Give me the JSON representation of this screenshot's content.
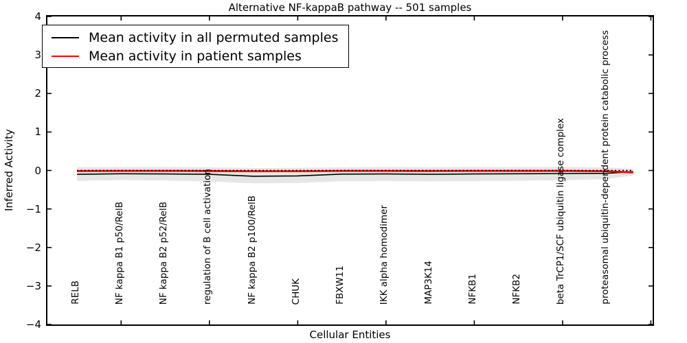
{
  "title": "Alternative NF-kappaB pathway -- 501 samples",
  "axes": {
    "xlabel": "Cellular Entities",
    "ylabel": "Inferred Activity",
    "xlim": [
      -0.67,
      13.04
    ],
    "ylim": [
      -4,
      4
    ],
    "ytick_labels": [
      "4",
      "3",
      "2",
      "1",
      "0",
      "−1",
      "−2",
      "−3",
      "−4"
    ],
    "ytick_values": [
      4,
      3,
      2,
      1,
      0,
      -1,
      -2,
      -3,
      -4
    ],
    "xtick_values": [
      1,
      3,
      5,
      7,
      9,
      11,
      13
    ],
    "grid": false
  },
  "legend": {
    "position": "upper left",
    "entries": [
      {
        "label": "Mean activity in all permuted samples",
        "color": "#000000"
      },
      {
        "label": "Mean activity in patient samples",
        "color": "#ff0000"
      }
    ]
  },
  "chart_data": {
    "type": "line",
    "title": "Alternative NF-kappaB pathway -- 501 samples",
    "xlabel": "Cellular Entities",
    "ylabel": "Inferred Activity",
    "xlim": [
      -0.67,
      13.04
    ],
    "ylim": [
      -4,
      4
    ],
    "legend_position": "upper left",
    "grid": false,
    "categories": [
      "RELB",
      "NF kappa B1 p50/RelB",
      "NF kappa B2 p52/RelB",
      "regulation of B cell activation",
      "NF kappa B2 p100/RelB",
      "CHUK",
      "FBXW11",
      "IKK alpha homodimer",
      "MAP3K14",
      "NFKB1",
      "NFKB2",
      "beta TrCP1/SCF ubiquitin ligase complex",
      "proteasomal ubiquitin-dependent protein catabolic process"
    ],
    "category_x": [
      0,
      1,
      2,
      3,
      4,
      5,
      6,
      7,
      8,
      9,
      10,
      11,
      12
    ],
    "x": [
      0,
      1,
      2,
      3,
      4,
      5,
      6,
      7,
      8,
      9,
      10,
      11,
      12,
      12.6
    ],
    "series": [
      {
        "name": "Mean activity in all permuted samples",
        "color": "#000000",
        "style": "solid",
        "values": [
          -0.1,
          -0.085,
          -0.09,
          -0.1,
          -0.15,
          -0.14,
          -0.095,
          -0.09,
          -0.1,
          -0.09,
          -0.085,
          -0.08,
          -0.075,
          -0.03
        ]
      },
      {
        "name": "Mean activity in patient samples",
        "color": "#ff0000",
        "style": "solid",
        "values": [
          -0.015,
          -0.01,
          -0.01,
          -0.015,
          -0.02,
          -0.02,
          -0.01,
          -0.01,
          -0.015,
          -0.01,
          -0.01,
          -0.01,
          -0.02,
          -0.05
        ]
      },
      {
        "name": "zero reference line",
        "color": "#000000",
        "style": "dotted",
        "values": [
          0,
          0,
          0,
          0,
          0,
          0,
          0,
          0,
          0,
          0,
          0,
          0,
          0,
          0
        ]
      }
    ],
    "band": {
      "name": "permuted samples spread",
      "color": "#e6e6e6",
      "upper": [
        0.085,
        0.09,
        0.09,
        0.08,
        0.065,
        0.07,
        0.08,
        0.09,
        0.085,
        0.09,
        0.09,
        0.09,
        0.075,
        0.045
      ],
      "lower": [
        -0.27,
        -0.25,
        -0.26,
        -0.285,
        -0.335,
        -0.325,
        -0.28,
        -0.27,
        -0.285,
        -0.275,
        -0.265,
        -0.255,
        -0.225,
        -0.13
      ]
    }
  }
}
